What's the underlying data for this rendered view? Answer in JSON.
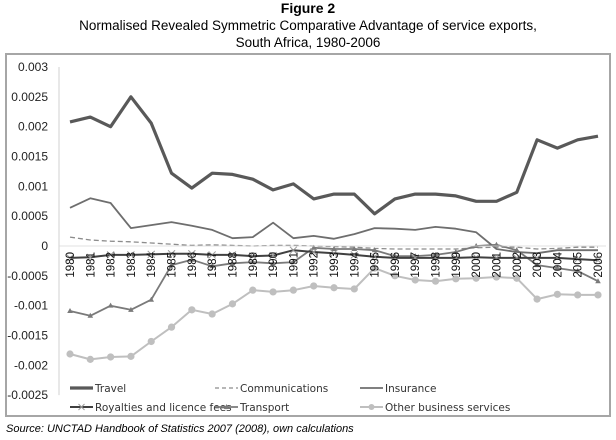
{
  "figure_label": "Figure 2",
  "title_line1": "Normalised Revealed Symmetric Comparative Advantage of service exports,",
  "title_line2": "South Africa, 1980-2006",
  "source": "Source: UNCTAD Handbook of Statistics 2007 (2008), own calculations",
  "chart_data": {
    "type": "line",
    "title": "Normalised Revealed Symmetric Comparative Advantage of service exports, South Africa, 1980-2006",
    "xlabel": "",
    "ylabel": "",
    "ylim": [
      -0.0025,
      0.003
    ],
    "yticks": [
      "0.003",
      "0.0025",
      "0.002",
      "0.0015",
      "0.001",
      "0.0005",
      "0",
      "-0.0005",
      "-0.001",
      "-0.0015",
      "-0.002",
      "-0.0025"
    ],
    "ytick_values": [
      0.003,
      0.0025,
      0.002,
      0.0015,
      0.001,
      0.0005,
      0,
      -0.0005,
      -0.001,
      -0.0015,
      -0.002,
      -0.0025
    ],
    "grid": false,
    "legend_position": "bottom",
    "x": [
      "1980",
      "1981",
      "1982",
      "1983",
      "1984",
      "1985",
      "1986",
      "1987",
      "1988",
      "1989",
      "1990",
      "1991",
      "1992",
      "1993",
      "1994",
      "1995",
      "1996",
      "1997",
      "1998",
      "1999",
      "2000",
      "2001",
      "2002",
      "2003",
      "2004",
      "2005",
      "2006"
    ],
    "series": [
      {
        "name": "Travel",
        "style": "thick",
        "color": "#595959",
        "values": [
          0.00208,
          0.00216,
          0.002,
          0.0025,
          0.00206,
          0.00122,
          0.00097,
          0.00122,
          0.0012,
          0.00112,
          0.00094,
          0.00104,
          0.00079,
          0.00087,
          0.00087,
          0.00054,
          0.00079,
          0.00087,
          0.00087,
          0.00084,
          0.00075,
          0.00075,
          0.0009,
          0.00178,
          0.00164,
          0.00178,
          0.00184
        ]
      },
      {
        "name": "Communications",
        "style": "dashed",
        "color": "#8c8c8c",
        "values": [
          0.00015,
          0.0001,
          8e-05,
          7e-05,
          5e-05,
          3e-05,
          1e-05,
          2e-05,
          1e-05,
          0.0,
          1e-05,
          1e-05,
          0.0,
          -1e-05,
          -2e-05,
          -4e-05,
          -5e-05,
          -5e-05,
          -5e-05,
          -5e-05,
          -3e-05,
          -2e-05,
          -2e-05,
          -5e-05,
          -4e-05,
          -2e-05,
          -2e-05
        ]
      },
      {
        "name": "Insurance",
        "style": "thin",
        "color": "#6e6e6e",
        "values": [
          0.00064,
          0.0008,
          0.00072,
          0.0003,
          0.00035,
          0.0004,
          0.00034,
          0.00027,
          0.00013,
          0.00015,
          0.00039,
          0.00013,
          0.00017,
          0.00012,
          0.0002,
          0.0003,
          0.00029,
          0.00027,
          0.00032,
          0.00029,
          0.00023,
          -5e-05,
          -0.0001,
          -0.00012,
          -7e-05,
          -7e-05,
          -7e-05
        ]
      },
      {
        "name": "Royalties and licence fees",
        "style": "x-marker",
        "color": "#404040",
        "values": [
          -0.0002,
          -0.00019,
          -0.00015,
          -0.00015,
          -0.00014,
          -0.00013,
          -0.00013,
          -0.00015,
          -0.00015,
          -0.00017,
          -0.00016,
          -7e-05,
          -0.0001,
          -0.00012,
          -0.00015,
          -0.00018,
          -0.0002,
          -0.0002,
          -0.0002,
          -0.0002,
          -0.00019,
          -0.0002,
          -0.0002,
          -0.0002,
          -0.0002,
          -0.00022,
          -0.00024
        ]
      },
      {
        "name": "Transport",
        "style": "triangle-marker",
        "color": "#7a7a7a",
        "values": [
          -0.00109,
          -0.00117,
          -0.001,
          -0.00107,
          -0.0009,
          -0.00032,
          -0.00023,
          -0.00034,
          -0.00029,
          -0.00027,
          -0.00029,
          -0.00027,
          -3e-05,
          -5e-05,
          -5e-05,
          -7e-05,
          -0.00017,
          -0.00017,
          -0.00015,
          -0.0001,
          0.0,
          2e-05,
          -7e-05,
          -0.00032,
          -0.00037,
          -0.00042,
          -0.00059
        ]
      },
      {
        "name": "Other business services",
        "style": "circle-marker",
        "color": "#bfbfbf",
        "values": [
          -0.00181,
          -0.0019,
          -0.00186,
          -0.00185,
          -0.0016,
          -0.00136,
          -0.00107,
          -0.00114,
          -0.00097,
          -0.00074,
          -0.00077,
          -0.00074,
          -0.00067,
          -0.0007,
          -0.00072,
          -0.00037,
          -0.0005,
          -0.00057,
          -0.00059,
          -0.00055,
          -0.00054,
          -0.00052,
          -0.00054,
          -0.00089,
          -0.00081,
          -0.00082,
          -0.00082
        ]
      }
    ]
  }
}
